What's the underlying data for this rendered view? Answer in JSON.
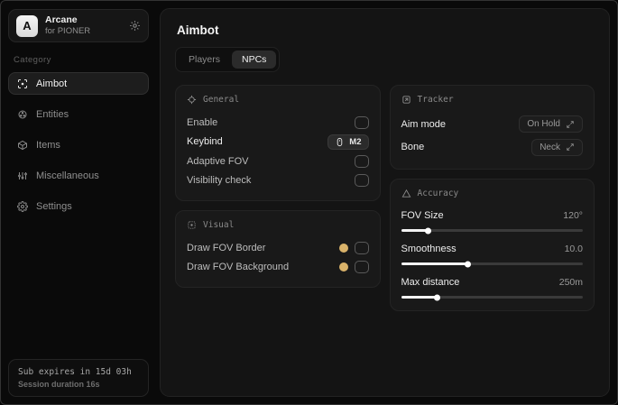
{
  "brand": {
    "logo_letter": "A",
    "name": "Arcane",
    "subtitle": "for PIONER"
  },
  "sidebar": {
    "category_label": "Category",
    "items": [
      {
        "label": "Aimbot",
        "icon": "crosshair-icon",
        "active": true
      },
      {
        "label": "Entities",
        "icon": "entities-icon",
        "active": false
      },
      {
        "label": "Items",
        "icon": "cube-icon",
        "active": false
      },
      {
        "label": "Miscellaneous",
        "icon": "sliders-icon",
        "active": false
      },
      {
        "label": "Settings",
        "icon": "gear-icon",
        "active": false
      }
    ],
    "subscription": {
      "line1": "Sub expires in 15d 03h",
      "line2": "Session duration 16s"
    }
  },
  "main": {
    "title": "Aimbot",
    "tabs": [
      {
        "label": "Players",
        "active": false
      },
      {
        "label": "NPCs",
        "active": true
      }
    ]
  },
  "cards": {
    "general": {
      "title": "General",
      "rows": [
        {
          "label": "Enable",
          "control": "checkbox",
          "checked": false
        },
        {
          "label": "Keybind",
          "control": "keybind",
          "value": "M2"
        },
        {
          "label": "Adaptive FOV",
          "control": "checkbox",
          "checked": false
        },
        {
          "label": "Visibility check",
          "control": "checkbox",
          "checked": false
        }
      ]
    },
    "visual": {
      "title": "Visual",
      "rows": [
        {
          "label": "Draw FOV Border",
          "control": "color+checkbox",
          "checked": false
        },
        {
          "label": "Draw FOV Background",
          "control": "color+checkbox",
          "checked": false
        }
      ]
    },
    "tracker": {
      "title": "Tracker",
      "rows": [
        {
          "label": "Aim mode",
          "value": "On Hold"
        },
        {
          "label": "Bone",
          "value": "Neck"
        }
      ]
    },
    "accuracy": {
      "title": "Accuracy",
      "sliders": [
        {
          "label": "FOV Size",
          "value": "120°",
          "fill_pct": 15
        },
        {
          "label": "Smoothness",
          "value": "10.0",
          "fill_pct": 37
        },
        {
          "label": "Max distance",
          "value": "250m",
          "fill_pct": 20
        }
      ]
    }
  },
  "colors": {
    "swatch": "#d9b26a"
  }
}
